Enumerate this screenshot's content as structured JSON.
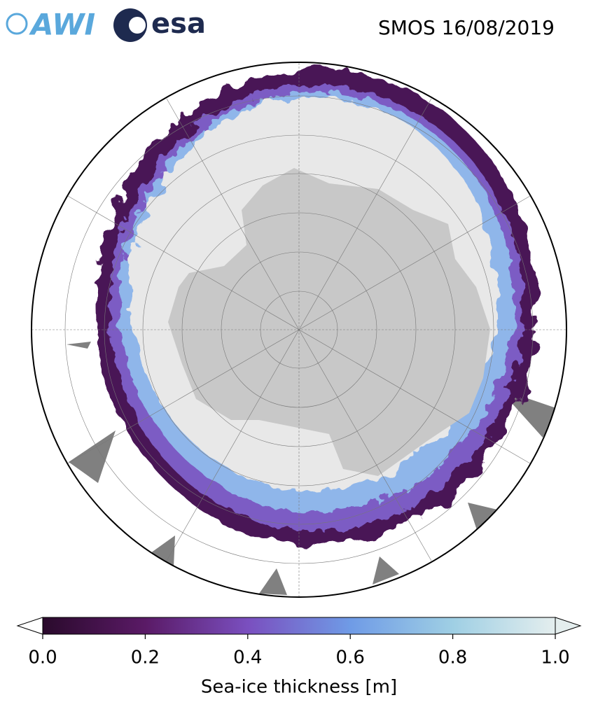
{
  "header": {
    "logos": [
      "AWI",
      "esa"
    ],
    "title": "SMOS 16/08/2019"
  },
  "colorbar": {
    "label": "Sea-ice thickness [m]",
    "lim": [
      0,
      1
    ],
    "ticks": [
      {
        "value": 0,
        "label": "0.0"
      },
      {
        "value": 0.2,
        "label": "0.2"
      },
      {
        "value": 0.4,
        "label": "0.4"
      },
      {
        "value": 0.6,
        "label": "0.6"
      },
      {
        "value": 0.8,
        "label": "0.8"
      },
      {
        "value": 1,
        "label": "1.0"
      }
    ],
    "colors": [
      "#2a0a2c",
      "#5a1a66",
      "#7a4fbf",
      "#6f9be6",
      "#9fcfe4",
      "#e4eeee"
    ]
  }
}
